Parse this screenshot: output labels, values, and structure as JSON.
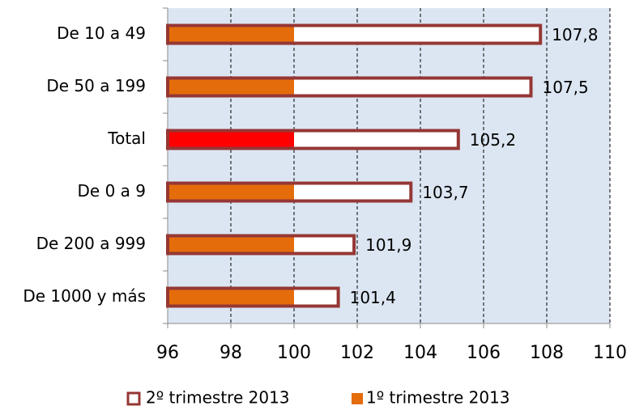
{
  "chart_data": {
    "type": "bar",
    "orientation": "horizontal",
    "categories": [
      "De 10 a 49",
      "De 50 a 199",
      "Total",
      "De 0 a 9",
      "De 200 a 999",
      "De 1000 y más"
    ],
    "series": [
      {
        "name": "2º trimestre 2013",
        "color": "#953735",
        "values": [
          107.8,
          107.5,
          105.2,
          103.7,
          101.9,
          101.4
        ],
        "value_labels": [
          "107,8",
          "107,5",
          "105,2",
          "103,7",
          "101,9",
          "101,4"
        ]
      },
      {
        "name": "1º trimestre 2013",
        "color": "#e46c0a",
        "values": [
          100,
          100,
          100,
          100,
          100,
          100
        ],
        "colors": [
          "#e46c0a",
          "#e46c0a",
          "#ff0000",
          "#e46c0a",
          "#e46c0a",
          "#e46c0a"
        ]
      }
    ],
    "xlim": [
      96,
      110
    ],
    "xticks": [
      96,
      98,
      100,
      102,
      104,
      106,
      108,
      110
    ],
    "grid": true,
    "legend": "bottom"
  }
}
